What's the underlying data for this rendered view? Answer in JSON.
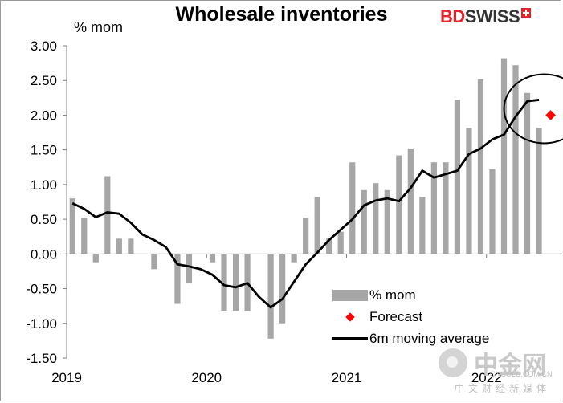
{
  "title": "Wholesale inventories",
  "unit_label": "% mom",
  "logo": {
    "part1": "BD",
    "part2": "SWISS"
  },
  "legend": {
    "bars": "% mom",
    "forecast": "Forecast",
    "line": "6m moving average"
  },
  "watermark": {
    "name": "中金网",
    "site": "CNGOLD.COM.CN",
    "sub": "中文财经新媒体"
  },
  "colors": {
    "bars": "#a6a6a6",
    "line": "#000000",
    "forecast": "#ff0000",
    "axis": "#7f7f7f"
  },
  "chart_data": {
    "type": "bar",
    "title": "Wholesale inventories",
    "ylabel": "% mom",
    "ylim": [
      -1.5,
      3.0
    ],
    "yticks": [
      "3.00",
      "2.50",
      "2.00",
      "1.50",
      "1.00",
      "0.50",
      "0.00",
      "-0.50",
      "-1.00",
      "-1.50"
    ],
    "xtick_labels": [
      "2019",
      "2020",
      "2021",
      "2022"
    ],
    "x_start": "2019-01",
    "grid": false,
    "legend_position": "bottom-right",
    "series": [
      {
        "name": "% mom",
        "type": "bar",
        "values": [
          0.8,
          0.52,
          -0.12,
          1.12,
          0.22,
          0.22,
          0.0,
          -0.22,
          0.0,
          -0.72,
          -0.42,
          0.0,
          -0.12,
          -0.82,
          -0.82,
          -0.82,
          0.0,
          -1.22,
          -1.0,
          -0.12,
          0.52,
          0.82,
          0.22,
          0.32,
          1.32,
          0.92,
          1.02,
          0.92,
          1.42,
          1.52,
          0.82,
          1.32,
          1.32,
          2.22,
          1.82,
          2.52,
          1.22,
          2.82,
          2.72,
          2.32,
          1.82
        ]
      },
      {
        "name": "6m moving average",
        "type": "line",
        "values": [
          0.73,
          0.65,
          0.53,
          0.6,
          0.58,
          0.45,
          0.28,
          0.2,
          0.1,
          -0.15,
          -0.18,
          -0.22,
          -0.3,
          -0.45,
          -0.48,
          -0.42,
          -0.62,
          -0.77,
          -0.65,
          -0.4,
          -0.15,
          0.02,
          0.2,
          0.35,
          0.5,
          0.7,
          0.77,
          0.8,
          0.76,
          0.95,
          1.2,
          1.1,
          1.15,
          1.2,
          1.44,
          1.52,
          1.65,
          1.72,
          1.98,
          2.2,
          2.22
        ]
      },
      {
        "name": "Forecast",
        "type": "point",
        "points": [
          {
            "x": "2022-06",
            "y": 2.0
          }
        ]
      }
    ],
    "annotations": [
      {
        "type": "circle",
        "around": "Forecast"
      }
    ]
  }
}
